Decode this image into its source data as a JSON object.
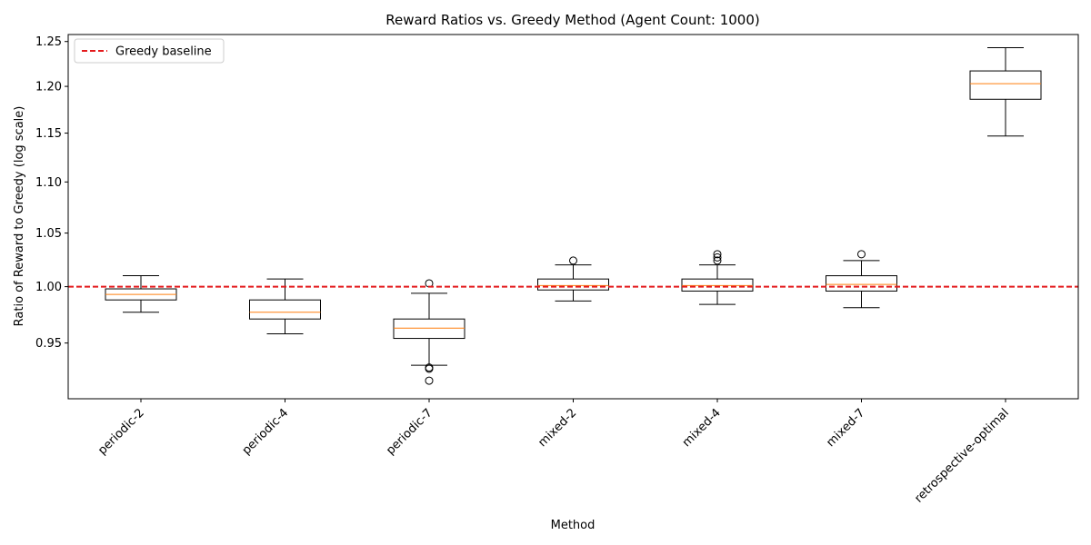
{
  "chart_data": {
    "type": "boxplot",
    "title": "Reward Ratios vs. Greedy Method (Agent Count: 1000)",
    "xlabel": "Method",
    "ylabel": "Ratio of Reward to Greedy (log scale)",
    "yscale": "log",
    "ylim": [
      0.903,
      1.258
    ],
    "yticks": [
      0.95,
      1.0,
      1.05,
      1.1,
      1.15,
      1.2,
      1.25
    ],
    "ytick_labels": [
      "0.95",
      "1.00",
      "1.05",
      "1.10",
      "1.15",
      "1.20",
      "1.25"
    ],
    "grid": false,
    "legend": {
      "position": "top-left",
      "entries": [
        {
          "label": "Greedy baseline",
          "color": "#e41a1c",
          "style": "dashed"
        }
      ]
    },
    "baseline": {
      "label": "Greedy baseline",
      "value": 1.0,
      "color": "#e41a1c"
    },
    "box_color": "#000000",
    "median_color": "#ff7f0e",
    "categories": [
      "periodic-2",
      "periodic-4",
      "periodic-7",
      "mixed-2",
      "mixed-4",
      "mixed-7",
      "retrospective-optimal"
    ],
    "boxes": [
      {
        "whisker_low": 0.977,
        "q1": 0.988,
        "median": 0.993,
        "q3": 0.998,
        "whisker_high": 1.01,
        "outliers": []
      },
      {
        "whisker_low": 0.958,
        "q1": 0.971,
        "median": 0.977,
        "q3": 0.988,
        "whisker_high": 1.007,
        "outliers": []
      },
      {
        "whisker_low": 0.931,
        "q1": 0.954,
        "median": 0.963,
        "q3": 0.971,
        "whisker_high": 0.994,
        "outliers": [
          0.918,
          0.928,
          0.929,
          1.003
        ]
      },
      {
        "whisker_low": 0.987,
        "q1": 0.997,
        "median": 1.001,
        "q3": 1.007,
        "whisker_high": 1.02,
        "outliers": [
          1.024
        ]
      },
      {
        "whisker_low": 0.984,
        "q1": 0.996,
        "median": 1.001,
        "q3": 1.007,
        "whisker_high": 1.02,
        "outliers": [
          1.024,
          1.027,
          1.03
        ]
      },
      {
        "whisker_low": 0.981,
        "q1": 0.996,
        "median": 1.002,
        "q3": 1.01,
        "whisker_high": 1.024,
        "outliers": [
          1.03
        ]
      },
      {
        "whisker_low": 1.147,
        "q1": 1.186,
        "median": 1.203,
        "q3": 1.217,
        "whisker_high": 1.243,
        "outliers": []
      }
    ]
  }
}
